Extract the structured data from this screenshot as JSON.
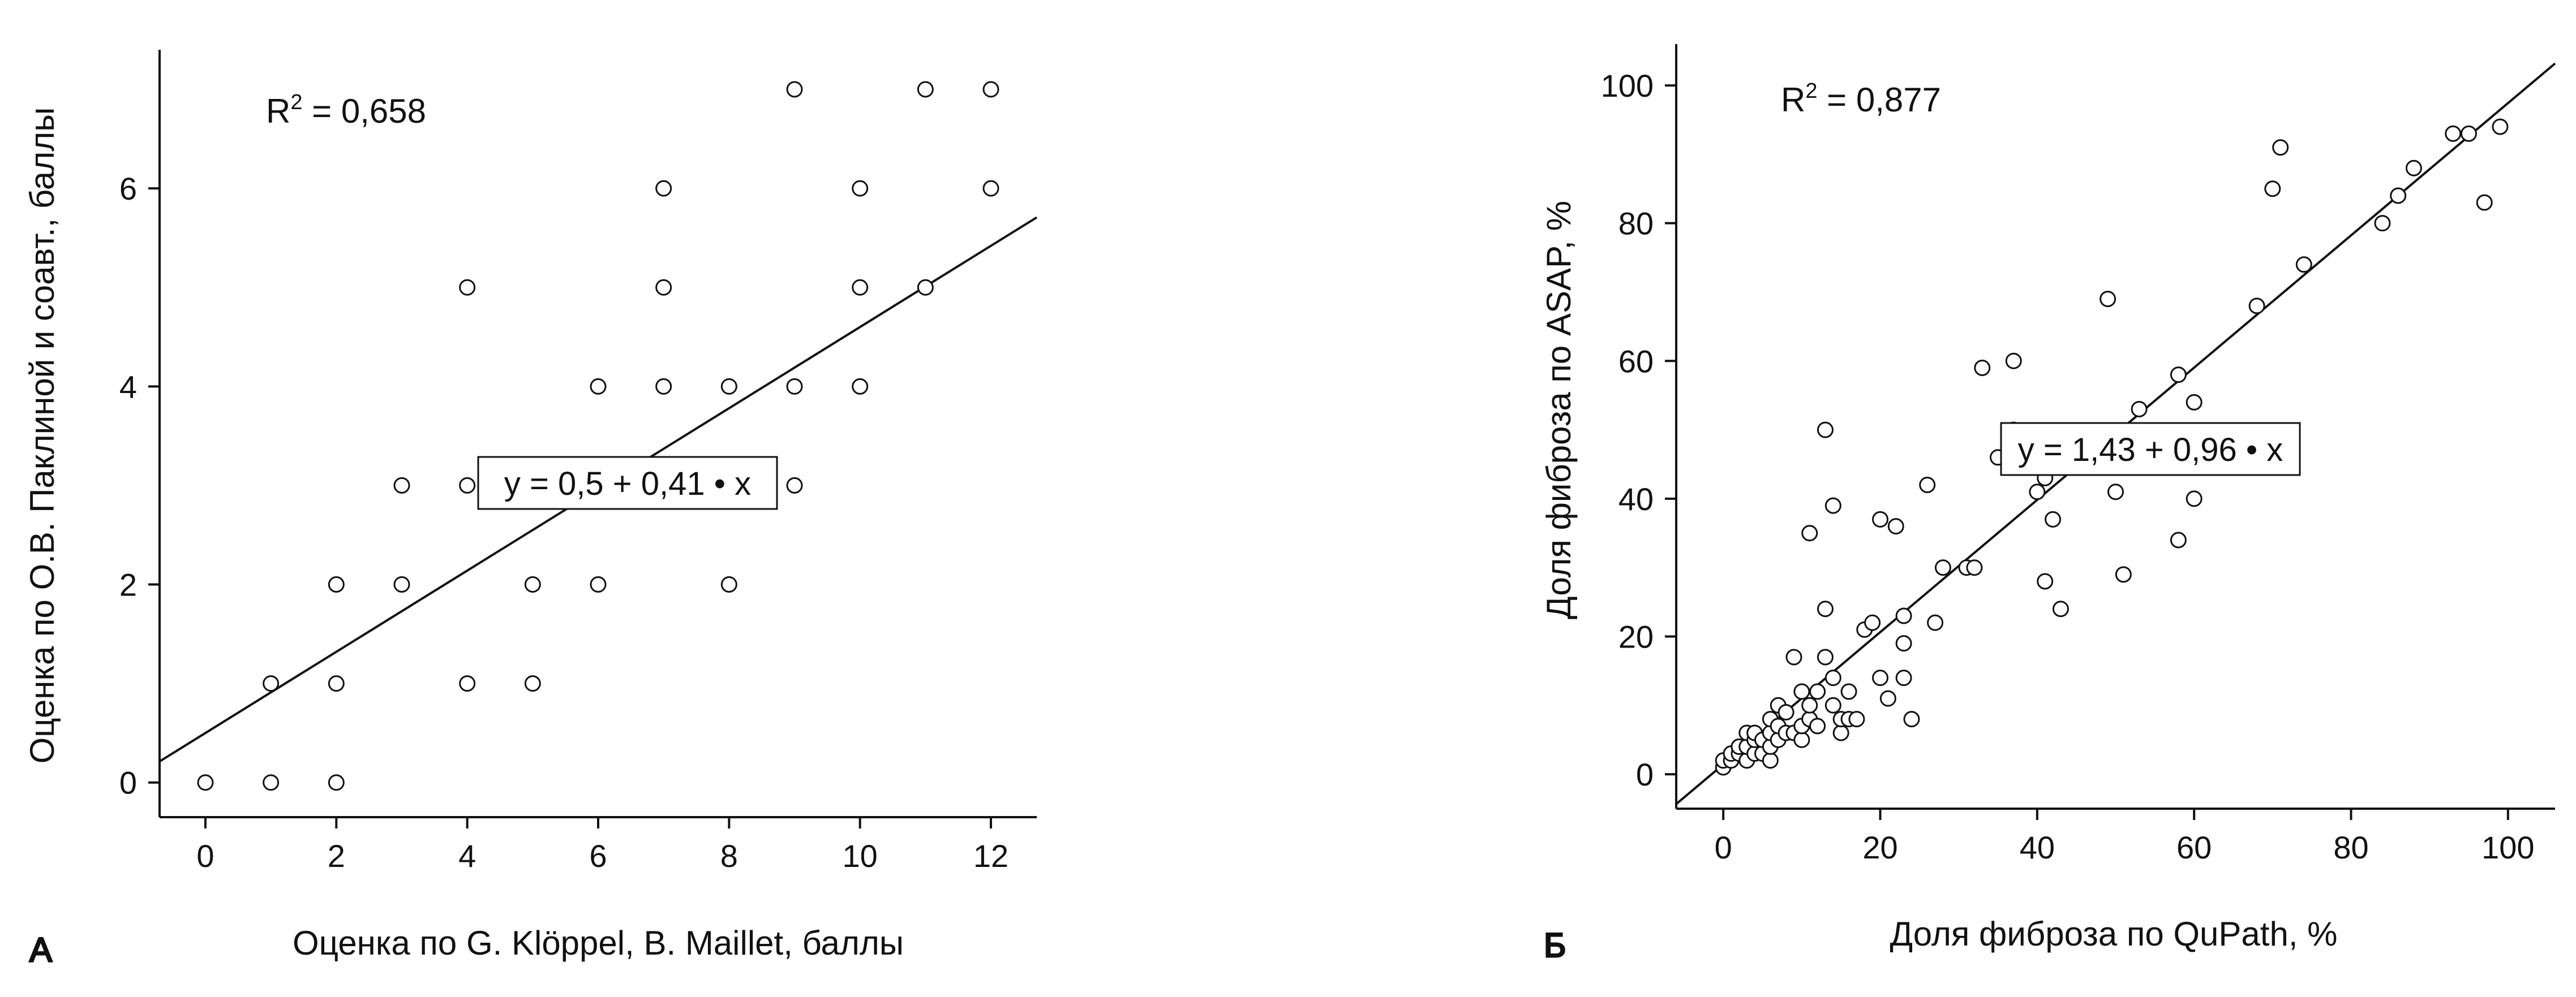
{
  "chart_data": [
    {
      "type": "scatter",
      "panel_label": "А",
      "xlabel": "Оценка по G. Klöppel, B. Maillet, баллы",
      "ylabel": "Оценка по О.В. Паклиной и соавт., баллы",
      "xlim": [
        -0.7,
        12.7
      ],
      "ylim": [
        -0.35,
        7.4
      ],
      "xticks": [
        "0",
        "2",
        "4",
        "6",
        "8",
        "10",
        "12"
      ],
      "yticks": [
        "0",
        "2",
        "4",
        "6"
      ],
      "xtick_values": [
        0,
        2,
        4,
        6,
        8,
        10,
        12
      ],
      "ytick_values": [
        0,
        2,
        4,
        6
      ],
      "r2": {
        "prefix": "R",
        "sup": "2",
        "value": " = 0,658"
      },
      "equation": "y = 0,5 + 0,41 • x",
      "regression": {
        "intercept": 0.5,
        "slope": 0.41
      },
      "grid": false,
      "legend": "none",
      "points": [
        [
          0,
          0
        ],
        [
          1,
          0
        ],
        [
          1,
          1
        ],
        [
          2,
          0
        ],
        [
          2,
          1
        ],
        [
          2,
          2
        ],
        [
          3,
          2
        ],
        [
          3,
          3
        ],
        [
          4,
          1
        ],
        [
          4,
          3
        ],
        [
          4,
          5
        ],
        [
          5,
          1
        ],
        [
          5,
          2
        ],
        [
          6,
          2
        ],
        [
          6,
          4
        ],
        [
          7,
          4
        ],
        [
          7,
          5
        ],
        [
          7,
          6
        ],
        [
          8,
          2
        ],
        [
          8,
          4
        ],
        [
          9,
          3
        ],
        [
          9,
          4
        ],
        [
          9,
          7
        ],
        [
          10,
          4
        ],
        [
          10,
          5
        ],
        [
          10,
          6
        ],
        [
          11,
          5
        ],
        [
          11,
          7
        ],
        [
          12,
          6
        ],
        [
          12,
          7
        ]
      ]
    },
    {
      "type": "scatter",
      "panel_label": "Б",
      "xlabel": "Доля фиброза по QuPath, %",
      "ylabel": "Доля фиброза по ASAP, %",
      "xlim": [
        -6,
        106
      ],
      "ylim": [
        -5,
        106
      ],
      "xticks": [
        "0",
        "20",
        "40",
        "60",
        "80",
        "100"
      ],
      "yticks": [
        "0",
        "20",
        "40",
        "60",
        "80",
        "100"
      ],
      "xtick_values": [
        0,
        20,
        40,
        60,
        80,
        100
      ],
      "ytick_values": [
        0,
        20,
        40,
        60,
        80,
        100
      ],
      "r2": {
        "prefix": "R",
        "sup": "2",
        "value": " = 0,877"
      },
      "equation": "y = 1,43 + 0,96 • x",
      "regression": {
        "intercept": 1.43,
        "slope": 0.96
      },
      "grid": false,
      "legend": "none",
      "points": [
        [
          0,
          1
        ],
        [
          0,
          2
        ],
        [
          1,
          2
        ],
        [
          1,
          3
        ],
        [
          2,
          3
        ],
        [
          2,
          4
        ],
        [
          3,
          2
        ],
        [
          3,
          4
        ],
        [
          3,
          6
        ],
        [
          4,
          3
        ],
        [
          4,
          5
        ],
        [
          4,
          6
        ],
        [
          5,
          3
        ],
        [
          5,
          5
        ],
        [
          6,
          2
        ],
        [
          6,
          4
        ],
        [
          6,
          6
        ],
        [
          6,
          8
        ],
        [
          7,
          5
        ],
        [
          7,
          7
        ],
        [
          7,
          10
        ],
        [
          8,
          6
        ],
        [
          8,
          9
        ],
        [
          9,
          6
        ],
        [
          9,
          17
        ],
        [
          10,
          5
        ],
        [
          10,
          7
        ],
        [
          10,
          12
        ],
        [
          11,
          8
        ],
        [
          11,
          10
        ],
        [
          11,
          35
        ],
        [
          12,
          7
        ],
        [
          12,
          12
        ],
        [
          13,
          17
        ],
        [
          13,
          24
        ],
        [
          13,
          50
        ],
        [
          14,
          10
        ],
        [
          14,
          14
        ],
        [
          14,
          39
        ],
        [
          15,
          6
        ],
        [
          15,
          8
        ],
        [
          16,
          8
        ],
        [
          16,
          12
        ],
        [
          17,
          8
        ],
        [
          18,
          21
        ],
        [
          19,
          22
        ],
        [
          20,
          14
        ],
        [
          20,
          37
        ],
        [
          21,
          11
        ],
        [
          22,
          36
        ],
        [
          23,
          14
        ],
        [
          23,
          19
        ],
        [
          23,
          23
        ],
        [
          24,
          8
        ],
        [
          26,
          42
        ],
        [
          27,
          22
        ],
        [
          28,
          30
        ],
        [
          31,
          30
        ],
        [
          32,
          30
        ],
        [
          33,
          59
        ],
        [
          35,
          46
        ],
        [
          37,
          50
        ],
        [
          37,
          60
        ],
        [
          40,
          41
        ],
        [
          41,
          28
        ],
        [
          41,
          43
        ],
        [
          42,
          37
        ],
        [
          43,
          24
        ],
        [
          49,
          69
        ],
        [
          50,
          41
        ],
        [
          51,
          29
        ],
        [
          53,
          53
        ],
        [
          58,
          34
        ],
        [
          58,
          58
        ],
        [
          60,
          40
        ],
        [
          60,
          54
        ],
        [
          68,
          68
        ],
        [
          70,
          85
        ],
        [
          71,
          91
        ],
        [
          74,
          74
        ],
        [
          84,
          80
        ],
        [
          86,
          84
        ],
        [
          88,
          88
        ],
        [
          93,
          93
        ],
        [
          95,
          93
        ],
        [
          97,
          83
        ],
        [
          99,
          94
        ]
      ]
    }
  ]
}
